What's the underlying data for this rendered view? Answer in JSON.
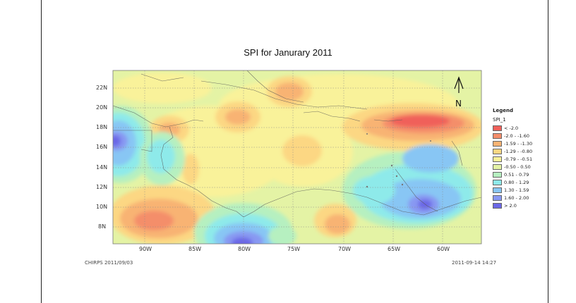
{
  "title": "SPI for Janurary 2011",
  "lat_labels": [
    "22N",
    "20N",
    "18N",
    "16N",
    "14N",
    "12N",
    "10N",
    "8N"
  ],
  "lon_labels": [
    "90W",
    "85W",
    "80W",
    "75W",
    "70W",
    "65W",
    "60W"
  ],
  "north_arrow": "N",
  "legend": {
    "title": "Legend",
    "field": "SPI_1",
    "items": [
      {
        "label": "< -2.0",
        "color": "#f0605a"
      },
      {
        "label": "-2.0 - -1.60",
        "color": "#f48e6b"
      },
      {
        "label": "-1.59 - -1.30",
        "color": "#f8b373"
      },
      {
        "label": "-1.29 - -0.80",
        "color": "#fcd783"
      },
      {
        "label": "-0.79 - -0.51",
        "color": "#f9f29a"
      },
      {
        "label": "-0.50 - 0.50",
        "color": "#e4f3a5"
      },
      {
        "label": "0.51 - 0.79",
        "color": "#b6f0c0"
      },
      {
        "label": "0.80 - 1.29",
        "color": "#8eeaea"
      },
      {
        "label": "1.30 - 1.59",
        "color": "#88c6f4"
      },
      {
        "label": "1.60 - 2.00",
        "color": "#8898f2"
      },
      {
        "label": "> 2.0",
        "color": "#6c68e6"
      }
    ]
  },
  "footer_left": "CHIRPS 2011/09/03",
  "footer_right": "2011-09-14 14:27"
}
